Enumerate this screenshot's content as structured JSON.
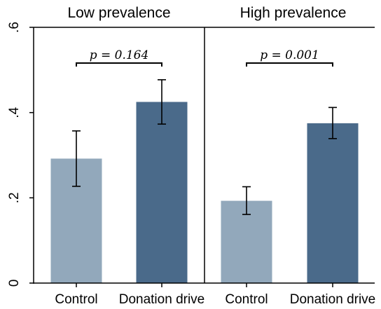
{
  "chart_data": {
    "type": "bar",
    "y_tick_labels": [
      "0",
      ".2",
      ".4",
      ".6"
    ],
    "ylim": [
      0,
      0.6
    ],
    "grid": false,
    "colors": {
      "control": "#92a8bb",
      "treatment": "#4a6a8a"
    },
    "panels": [
      {
        "title": "Low prevalence",
        "categories": [
          "Control",
          "Donation drive"
        ],
        "values": [
          0.292,
          0.425
        ],
        "ci_low": [
          0.227,
          0.373
        ],
        "ci_high": [
          0.357,
          0.477
        ],
        "pvalue_label": "p = 0.164"
      },
      {
        "title": "High prevalence",
        "categories": [
          "Control",
          "Donation drive"
        ],
        "values": [
          0.193,
          0.375
        ],
        "ci_low": [
          0.161,
          0.339
        ],
        "ci_high": [
          0.226,
          0.412
        ],
        "pvalue_label": "p = 0.001"
      }
    ]
  }
}
